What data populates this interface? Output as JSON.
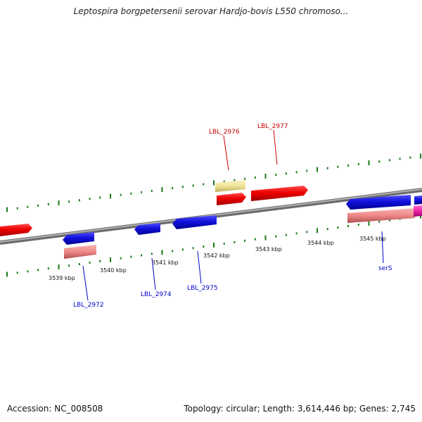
{
  "title": "Leptospira borgpetersenii serovar Hardjo-bovis L550 chromoso...",
  "footer": {
    "accession": "Accession: NC_008508",
    "summary": "Topology: circular; Length: 3,614,446 bp; Genes: 2,745"
  },
  "scale_labels": [
    "3539 kbp",
    "3540 kbp",
    "3541 kbp",
    "3542 kbp",
    "3543 kbp",
    "3544 kbp",
    "3545 kbp"
  ],
  "gene_labels": [
    {
      "id": "lbl2976",
      "text": "LBL_2976",
      "color": "#cc0000"
    },
    {
      "id": "lbl2977",
      "text": "LBL_2977",
      "color": "#cc0000"
    },
    {
      "id": "lbl2972",
      "text": "LBL_2972",
      "color": "#0000cc"
    },
    {
      "id": "lbl2974",
      "text": "LBL_2974",
      "color": "#0000cc"
    },
    {
      "id": "lbl2975",
      "text": "LBL_2975",
      "color": "#0000cc"
    },
    {
      "id": "serS",
      "text": "serS",
      "color": "#0000cc"
    }
  ],
  "colors": {
    "forward_cds": "#ee0000",
    "reverse_cds": "#1111dd",
    "forward_feature_light": "#f0e49a",
    "reverse_feature_light": "#ee8888",
    "rna": "#ee22aa",
    "backbone": "#888888",
    "tick": "#1a7a1a"
  }
}
